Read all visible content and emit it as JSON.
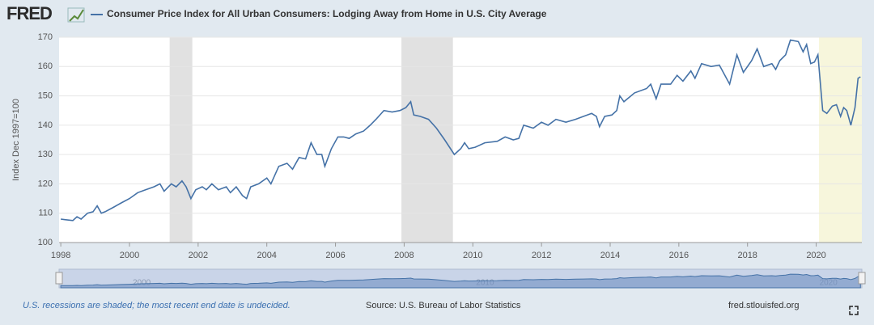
{
  "logo": "FRED",
  "footer": {
    "note": "U.S. recessions are shaded; the most recent end date is undecided.",
    "source": "Source: U.S. Bureau of Labor Statistics",
    "site": "fred.stlouisfed.org"
  },
  "chart_data": {
    "type": "line",
    "title": "Consumer Price Index for All Urban Consumers: Lodging Away from Home in U.S. City Average",
    "y_label": "Index Dec 1997=100",
    "xlim": [
      1997.95,
      2021.33
    ],
    "ylim": [
      100,
      170
    ],
    "xticks": [
      1998,
      2000,
      2002,
      2004,
      2006,
      2008,
      2010,
      2012,
      2014,
      2016,
      2018,
      2020
    ],
    "yticks": [
      100,
      110,
      120,
      130,
      140,
      150,
      160,
      170
    ],
    "grid": true,
    "recessions": [
      [
        2001.17,
        2001.83
      ],
      [
        2007.92,
        2009.42
      ]
    ],
    "recession_color": "#e1e1e1",
    "undecided_recession": [
      2020.08,
      2021.33
    ],
    "undecided_color": "#f7f6dc",
    "navigator_ticks": [
      2000,
      2010,
      2020
    ],
    "series": [
      {
        "name": "Consumer Price Index for All Urban Consumers: Lodging Away from Home in U.S. City Average",
        "color": "#4572a7",
        "x": [
          1998.0,
          1998.12,
          1998.35,
          1998.47,
          1998.59,
          1998.78,
          1998.94,
          1999.06,
          1999.18,
          1999.29,
          1999.53,
          1999.76,
          2000.0,
          2000.24,
          2000.47,
          2000.71,
          2000.89,
          2001.01,
          2001.22,
          2001.36,
          2001.53,
          2001.65,
          2001.79,
          2001.93,
          2002.12,
          2002.24,
          2002.4,
          2002.59,
          2002.82,
          2002.94,
          2003.11,
          2003.29,
          2003.41,
          2003.53,
          2003.76,
          2004.0,
          2004.12,
          2004.35,
          2004.59,
          2004.75,
          2004.94,
          2005.13,
          2005.29,
          2005.46,
          2005.6,
          2005.69,
          2005.88,
          2006.07,
          2006.24,
          2006.4,
          2006.59,
          2006.82,
          2007.01,
          2007.18,
          2007.41,
          2007.65,
          2007.88,
          2008.05,
          2008.19,
          2008.28,
          2008.47,
          2008.71,
          2008.94,
          2009.18,
          2009.46,
          2009.65,
          2009.76,
          2009.88,
          2010.07,
          2010.35,
          2010.71,
          2010.94,
          2011.18,
          2011.34,
          2011.48,
          2011.76,
          2012.0,
          2012.19,
          2012.42,
          2012.71,
          2012.99,
          2013.22,
          2013.46,
          2013.6,
          2013.69,
          2013.84,
          2014.05,
          2014.19,
          2014.28,
          2014.4,
          2014.71,
          2015.06,
          2015.18,
          2015.34,
          2015.48,
          2015.76,
          2015.95,
          2016.12,
          2016.35,
          2016.47,
          2016.66,
          2016.94,
          2017.18,
          2017.48,
          2017.69,
          2017.88,
          2018.12,
          2018.28,
          2018.47,
          2018.71,
          2018.82,
          2018.94,
          2019.11,
          2019.25,
          2019.48,
          2019.62,
          2019.72,
          2019.84,
          2019.95,
          2020.05,
          2020.19,
          2020.31,
          2020.47,
          2020.59,
          2020.71,
          2020.8,
          2020.89,
          2021.01,
          2021.13,
          2021.22,
          2021.29
        ],
        "values": [
          108,
          107.8,
          107.5,
          108.8,
          108,
          110,
          110.5,
          112.5,
          110,
          110.5,
          112,
          113.5,
          115,
          117,
          118,
          119,
          120,
          117.5,
          120,
          119,
          121,
          119,
          115,
          118,
          119,
          118,
          120,
          118,
          119,
          117,
          119,
          116,
          115,
          119,
          120,
          122,
          120,
          126,
          127,
          125,
          129,
          128.5,
          134,
          130,
          130,
          126,
          132,
          136,
          136,
          135.5,
          137,
          138,
          140,
          142,
          145,
          144.5,
          145,
          146,
          148,
          143.5,
          143,
          142,
          139,
          135,
          130,
          132,
          134,
          132,
          132.5,
          134,
          134.5,
          136,
          135,
          135.5,
          140,
          139,
          141,
          140,
          142,
          141,
          142,
          143,
          144,
          143,
          139.5,
          143,
          143.5,
          145,
          150,
          148,
          151,
          152.5,
          154,
          149,
          154,
          154,
          157,
          155,
          158.5,
          156,
          161,
          160,
          160.5,
          154,
          164,
          158,
          162,
          166,
          160,
          161,
          159,
          162,
          164,
          169,
          168.5,
          165,
          167.5,
          161,
          161.5,
          164,
          145,
          144,
          146.5,
          147,
          143,
          146,
          145,
          140,
          146,
          156,
          156.5
        ]
      }
    ]
  }
}
